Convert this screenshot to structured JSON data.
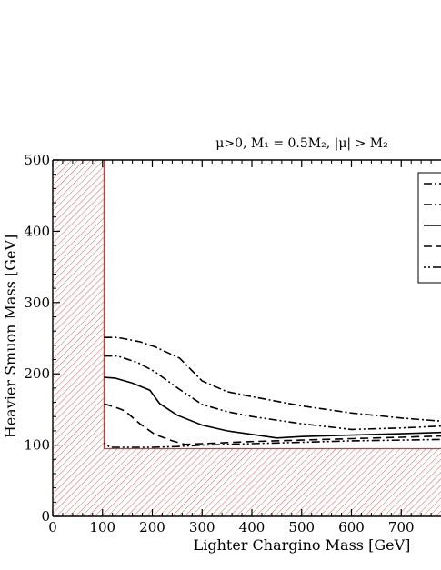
{
  "chart_data": {
    "type": "line",
    "title": "μ>0,   M₁ = 0.5M₂,  |μ| > M₂",
    "xlabel": "Lighter Chargino Mass  [GeV]",
    "ylabel": "Heavier Smuon Mass  [GeV]",
    "xlim": [
      0,
      850
    ],
    "ylim": [
      0,
      500
    ],
    "x_ticks": [
      0,
      100,
      200,
      300,
      400,
      500,
      600,
      700
    ],
    "x_tick_labels": [
      "0",
      "100",
      "200",
      "300",
      "400",
      "500",
      "600",
      "700"
    ],
    "y_ticks": [
      0,
      100,
      200,
      300,
      400,
      500
    ],
    "y_tick_labels": [
      "0",
      "100",
      "200",
      "300",
      "400",
      "500"
    ],
    "excluded_region": {
      "x_boundary": 103,
      "y_boundary": 95,
      "color": "#e03030"
    },
    "legend_placement": "top-right",
    "series": [
      {
        "style": "dash-dot",
        "points": [
          [
            103,
            251
          ],
          [
            130,
            251
          ],
          [
            175,
            245
          ],
          [
            205,
            238
          ],
          [
            255,
            222
          ],
          [
            300,
            190
          ],
          [
            350,
            175
          ],
          [
            400,
            168
          ],
          [
            500,
            155
          ],
          [
            600,
            145
          ],
          [
            700,
            138
          ],
          [
            790,
            133
          ]
        ]
      },
      {
        "style": "dash-dot-dot",
        "points": [
          [
            103,
            225
          ],
          [
            130,
            225
          ],
          [
            170,
            216
          ],
          [
            205,
            203
          ],
          [
            255,
            178
          ],
          [
            300,
            157
          ],
          [
            350,
            147
          ],
          [
            400,
            140
          ],
          [
            500,
            130
          ],
          [
            600,
            122
          ],
          [
            700,
            124
          ],
          [
            790,
            127
          ]
        ]
      },
      {
        "style": "solid",
        "points": [
          [
            103,
            195
          ],
          [
            125,
            194
          ],
          [
            160,
            187
          ],
          [
            195,
            177
          ],
          [
            215,
            158
          ],
          [
            250,
            142
          ],
          [
            300,
            128
          ],
          [
            350,
            120
          ],
          [
            400,
            115
          ],
          [
            450,
            110
          ],
          [
            500,
            112
          ],
          [
            600,
            114
          ],
          [
            700,
            116
          ],
          [
            790,
            118
          ]
        ]
      },
      {
        "style": "dashed",
        "points": [
          [
            103,
            158
          ],
          [
            130,
            152
          ],
          [
            145,
            148
          ],
          [
            175,
            130
          ],
          [
            205,
            115
          ],
          [
            240,
            106
          ],
          [
            265,
            101
          ],
          [
            300,
            102
          ],
          [
            400,
            105
          ],
          [
            500,
            107
          ],
          [
            600,
            109
          ],
          [
            700,
            111
          ],
          [
            790,
            113
          ]
        ]
      },
      {
        "style": "dash-dot-sparse",
        "points": [
          [
            103,
            103
          ],
          [
            115,
            97
          ],
          [
            150,
            97
          ],
          [
            200,
            97
          ],
          [
            250,
            98
          ],
          [
            300,
            100
          ],
          [
            400,
            102
          ],
          [
            500,
            104
          ],
          [
            600,
            106
          ],
          [
            700,
            107
          ],
          [
            790,
            108
          ]
        ]
      }
    ]
  }
}
